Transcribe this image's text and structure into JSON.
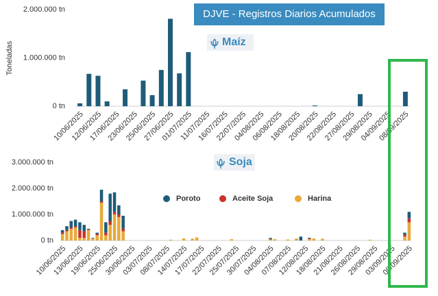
{
  "title": "DJVE - Registros Diarios Acumulados",
  "chart_data": [
    {
      "type": "bar",
      "subtitle": "Maíz",
      "y_label": "Toneladas",
      "color": "#1f5c7a",
      "categories": [
        "10/06/2025",
        null,
        "12/06/2025",
        null,
        "17/06/2025",
        null,
        "23/06/2025",
        null,
        "25/06/2025",
        null,
        "27/06/2025",
        null,
        "01/07/2025",
        null,
        "11/07/2025",
        null,
        "16/07/2025",
        null,
        "22/07/2025",
        null,
        "04/08/2025",
        null,
        "06/08/2025",
        null,
        "18/08/2025",
        null,
        "20/08/2025",
        null,
        "22/08/2025",
        null,
        "27/08/2025",
        null,
        "29/08/2025",
        null,
        "04/09/2025",
        null,
        "08/09/2025"
      ],
      "values": [
        60000,
        670000,
        630000,
        100000,
        0,
        350000,
        0,
        530000,
        230000,
        750000,
        1810000,
        680000,
        1120000,
        0,
        0,
        0,
        0,
        0,
        0,
        0,
        0,
        0,
        0,
        0,
        0,
        0,
        15000,
        0,
        0,
        0,
        0,
        250000,
        0,
        0,
        0,
        0,
        300000
      ],
      "ylim": [
        0,
        2000000
      ],
      "yticks": [
        {
          "value": 0,
          "label": "0 tn"
        },
        {
          "value": 1000000,
          "label": "1.000.000 tn"
        },
        {
          "value": 2000000,
          "label": "2.000.000 tn"
        }
      ],
      "grid": false
    },
    {
      "type": "stacked_bar",
      "subtitle": "Soja",
      "categories": [
        "10/06/2025",
        null,
        null,
        null,
        "13/06/2025",
        null,
        null,
        null,
        "19/06/2025",
        null,
        null,
        null,
        "25/06/2025",
        null,
        null,
        null,
        "30/06/2025",
        null,
        null,
        null,
        "03/07/2025",
        null,
        null,
        null,
        "08/07/2025",
        null,
        null,
        null,
        "14/07/2025",
        null,
        null,
        null,
        "17/07/2025",
        null,
        null,
        null,
        "22/07/2025",
        null,
        null,
        null,
        "25/07/2025",
        null,
        null,
        null,
        "30/07/2025",
        null,
        null,
        null,
        "04/08/2025",
        null,
        null,
        null,
        "07/08/2025",
        null,
        null,
        null,
        "12/08/2025",
        null,
        null,
        null,
        "18/08/2025",
        null,
        null,
        null,
        "21/08/2025",
        null,
        null,
        null,
        "26/08/2025",
        null,
        null,
        null,
        "29/08/2025",
        null,
        null,
        null,
        "03/09/2025",
        null,
        null,
        null,
        "08/09/2025"
      ],
      "series": [
        {
          "name": "Poroto",
          "color": "#1f5c7a",
          "values": [
            100000,
            150000,
            250000,
            250000,
            300000,
            250000,
            30000,
            20000,
            50000,
            450000,
            400000,
            1050000,
            750000,
            350000,
            500000,
            0,
            0,
            0,
            0,
            0,
            0,
            0,
            0,
            0,
            0,
            0,
            0,
            0,
            0,
            0,
            0,
            0,
            0,
            0,
            0,
            0,
            0,
            0,
            0,
            0,
            0,
            0,
            0,
            0,
            0,
            0,
            0,
            0,
            40000,
            0,
            0,
            0,
            0,
            0,
            0,
            150000,
            0,
            30000,
            0,
            0,
            0,
            0,
            0,
            0,
            0,
            0,
            0,
            0,
            0,
            0,
            0,
            0,
            0,
            0,
            0,
            0,
            0,
            0,
            0,
            80000,
            250000
          ]
        },
        {
          "name": "Aceite Soja",
          "color": "#c8332b",
          "values": [
            50000,
            50000,
            50000,
            50000,
            300000,
            250000,
            20000,
            0,
            50000,
            50000,
            100000,
            150000,
            100000,
            100000,
            100000,
            0,
            0,
            0,
            0,
            0,
            0,
            0,
            0,
            0,
            0,
            0,
            0,
            0,
            0,
            0,
            0,
            0,
            0,
            0,
            0,
            0,
            0,
            0,
            0,
            0,
            0,
            0,
            0,
            0,
            0,
            0,
            0,
            0,
            20000,
            0,
            0,
            0,
            0,
            0,
            0,
            0,
            0,
            20000,
            0,
            0,
            0,
            0,
            0,
            0,
            0,
            0,
            0,
            0,
            0,
            0,
            0,
            0,
            0,
            0,
            0,
            0,
            0,
            0,
            0,
            70000,
            150000
          ]
        },
        {
          "name": "Harina",
          "color": "#e9a93b",
          "values": [
            250000,
            350000,
            450000,
            500000,
            100000,
            100000,
            400000,
            80000,
            200000,
            1450000,
            200000,
            600000,
            1000000,
            900000,
            350000,
            0,
            0,
            0,
            0,
            0,
            0,
            0,
            0,
            0,
            0,
            30000,
            0,
            0,
            80000,
            0,
            70000,
            120000,
            0,
            0,
            0,
            0,
            0,
            0,
            0,
            50000,
            0,
            0,
            0,
            0,
            0,
            0,
            0,
            0,
            40000,
            50000,
            0,
            0,
            40000,
            0,
            80000,
            0,
            0,
            50000,
            80000,
            0,
            70000,
            0,
            0,
            0,
            0,
            0,
            0,
            0,
            0,
            0,
            0,
            30000,
            0,
            0,
            0,
            0,
            0,
            0,
            0,
            150000,
            700000
          ]
        }
      ],
      "ylim": [
        0,
        3000000
      ],
      "yticks": [
        {
          "value": 0,
          "label": "0 tn"
        },
        {
          "value": 1000000,
          "label": "1.000.000 tn"
        },
        {
          "value": 2000000,
          "label": "2.000.000 tn"
        },
        {
          "value": 3000000,
          "label": "3.000.000 tn"
        }
      ],
      "grid": false,
      "legend": "center"
    }
  ]
}
